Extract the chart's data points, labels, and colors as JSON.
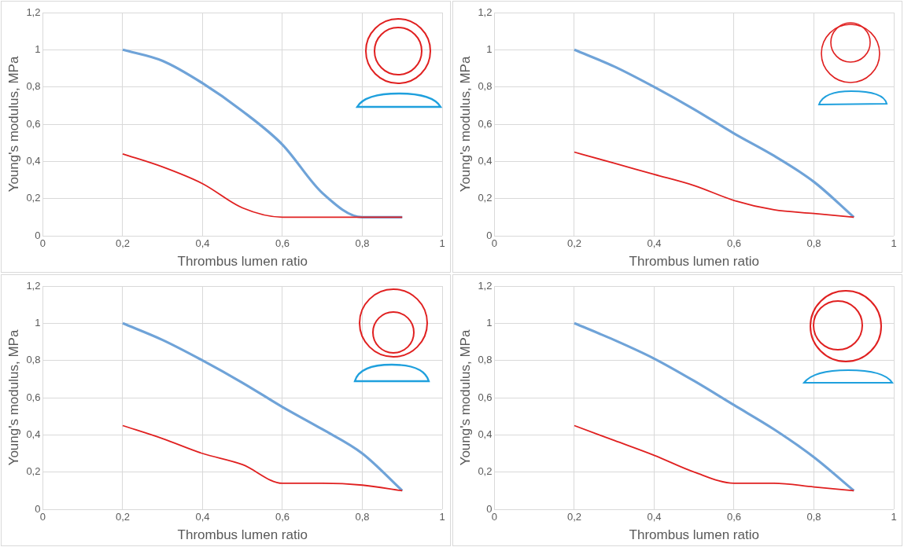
{
  "chart_data": [
    {
      "type": "line",
      "xlabel": "Thrombus lumen ratio",
      "ylabel": "Young's modulus, MPa",
      "x": [
        0.2,
        0.3,
        0.4,
        0.5,
        0.6,
        0.7,
        0.8,
        0.9
      ],
      "xlim": [
        0,
        1
      ],
      "xticks": [
        {
          "value": 0,
          "label": "0"
        },
        {
          "value": 0.2,
          "label": "0,2"
        },
        {
          "value": 0.4,
          "label": "0,4"
        },
        {
          "value": 0.6,
          "label": "0,6"
        },
        {
          "value": 0.8,
          "label": "0,8"
        },
        {
          "value": 1,
          "label": "1"
        }
      ],
      "ylim": [
        0,
        1.2
      ],
      "yticks": [
        {
          "value": 0,
          "label": "0"
        },
        {
          "value": 0.2,
          "label": "0,2"
        },
        {
          "value": 0.4,
          "label": "0,4"
        },
        {
          "value": 0.6,
          "label": "0,6"
        },
        {
          "value": 0.8,
          "label": "0,8"
        },
        {
          "value": 1,
          "label": "1"
        },
        {
          "value": 1.2,
          "label": "1,2"
        }
      ],
      "grid": true,
      "series": [
        {
          "color": "#6fa3d8",
          "values": [
            1.0,
            0.94,
            0.82,
            0.67,
            0.49,
            0.23,
            0.1,
            0.1
          ]
        },
        {
          "color": "#e02020",
          "values": [
            0.44,
            0.37,
            0.28,
            0.15,
            0.1,
            0.1,
            0.1,
            0.1
          ]
        }
      ]
    },
    {
      "type": "line",
      "xlabel": "Thrombus lumen ratio",
      "ylabel": "Young's modulus, MPa",
      "x": [
        0.2,
        0.3,
        0.4,
        0.5,
        0.6,
        0.7,
        0.8,
        0.9
      ],
      "xlim": [
        0,
        1
      ],
      "xticks": [
        {
          "value": 0,
          "label": "0"
        },
        {
          "value": 0.2,
          "label": "0,2"
        },
        {
          "value": 0.4,
          "label": "0,4"
        },
        {
          "value": 0.6,
          "label": "0,6"
        },
        {
          "value": 0.8,
          "label": "0,8"
        },
        {
          "value": 1,
          "label": "1"
        }
      ],
      "ylim": [
        0,
        1.2
      ],
      "yticks": [
        {
          "value": 0,
          "label": "0"
        },
        {
          "value": 0.2,
          "label": "0,2"
        },
        {
          "value": 0.4,
          "label": "0,4"
        },
        {
          "value": 0.6,
          "label": "0,6"
        },
        {
          "value": 0.8,
          "label": "0,8"
        },
        {
          "value": 1,
          "label": "1"
        },
        {
          "value": 1.2,
          "label": "1,2"
        }
      ],
      "grid": true,
      "series": [
        {
          "color": "#6fa3d8",
          "values": [
            1.0,
            0.91,
            0.8,
            0.68,
            0.55,
            0.43,
            0.29,
            0.1
          ]
        },
        {
          "color": "#e02020",
          "values": [
            0.45,
            0.39,
            0.33,
            0.27,
            0.19,
            0.14,
            0.12,
            0.1
          ]
        }
      ]
    },
    {
      "type": "line",
      "xlabel": "Thrombus lumen ratio",
      "ylabel": "Young's modulus, MPa",
      "x": [
        0.2,
        0.3,
        0.4,
        0.5,
        0.6,
        0.7,
        0.8,
        0.9
      ],
      "xlim": [
        0,
        1
      ],
      "xticks": [
        {
          "value": 0,
          "label": "0"
        },
        {
          "value": 0.2,
          "label": "0,2"
        },
        {
          "value": 0.4,
          "label": "0,4"
        },
        {
          "value": 0.6,
          "label": "0,6"
        },
        {
          "value": 0.8,
          "label": "0,8"
        },
        {
          "value": 1,
          "label": "1"
        }
      ],
      "ylim": [
        0,
        1.2
      ],
      "yticks": [
        {
          "value": 0,
          "label": "0"
        },
        {
          "value": 0.2,
          "label": "0,2"
        },
        {
          "value": 0.4,
          "label": "0,4"
        },
        {
          "value": 0.6,
          "label": "0,6"
        },
        {
          "value": 0.8,
          "label": "0,8"
        },
        {
          "value": 1,
          "label": "1"
        },
        {
          "value": 1.2,
          "label": "1,2"
        }
      ],
      "grid": true,
      "series": [
        {
          "color": "#6fa3d8",
          "values": [
            1.0,
            0.91,
            0.8,
            0.68,
            0.55,
            0.43,
            0.3,
            0.1
          ]
        },
        {
          "color": "#e02020",
          "values": [
            0.45,
            0.38,
            0.3,
            0.24,
            0.14,
            0.14,
            0.13,
            0.1
          ]
        }
      ]
    },
    {
      "type": "line",
      "xlabel": "Thrombus lumen ratio",
      "ylabel": "Young's modulus, MPa",
      "x": [
        0.2,
        0.3,
        0.4,
        0.5,
        0.6,
        0.7,
        0.8,
        0.9
      ],
      "xlim": [
        0,
        1
      ],
      "xticks": [
        {
          "value": 0,
          "label": "0"
        },
        {
          "value": 0.2,
          "label": "0,2"
        },
        {
          "value": 0.4,
          "label": "0,4"
        },
        {
          "value": 0.6,
          "label": "0,6"
        },
        {
          "value": 0.8,
          "label": "0,8"
        },
        {
          "value": 1,
          "label": "1"
        }
      ],
      "ylim": [
        0,
        1.2
      ],
      "yticks": [
        {
          "value": 0,
          "label": "0"
        },
        {
          "value": 0.2,
          "label": "0,2"
        },
        {
          "value": 0.4,
          "label": "0,4"
        },
        {
          "value": 0.6,
          "label": "0,6"
        },
        {
          "value": 0.8,
          "label": "0,8"
        },
        {
          "value": 1,
          "label": "1"
        },
        {
          "value": 1.2,
          "label": "1,2"
        }
      ],
      "grid": true,
      "series": [
        {
          "color": "#6fa3d8",
          "values": [
            1.0,
            0.91,
            0.81,
            0.69,
            0.56,
            0.43,
            0.28,
            0.1
          ]
        },
        {
          "color": "#e02020",
          "values": [
            0.45,
            0.37,
            0.29,
            0.2,
            0.14,
            0.14,
            0.12,
            0.1
          ]
        }
      ]
    }
  ]
}
